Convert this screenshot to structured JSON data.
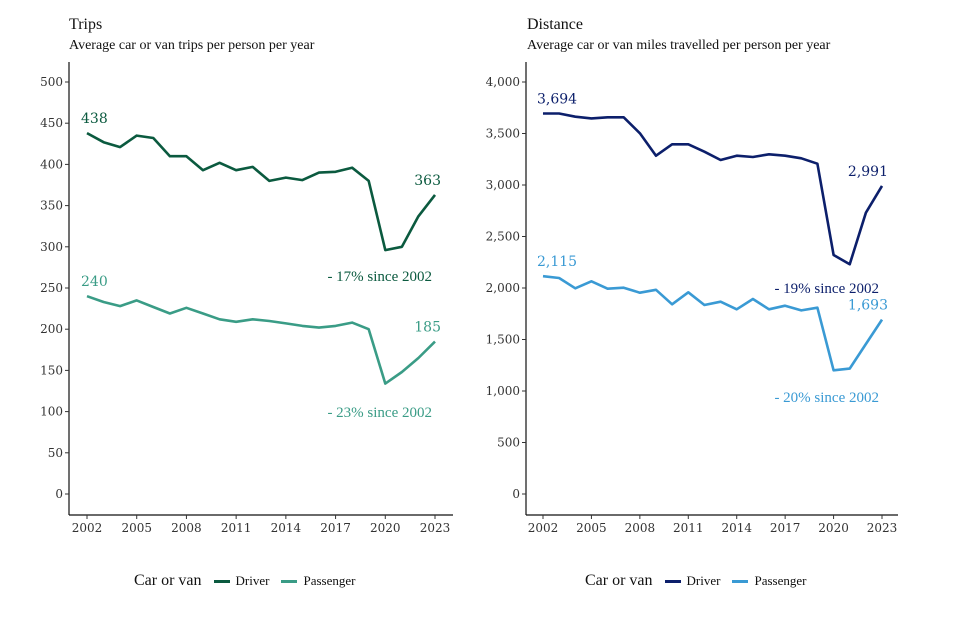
{
  "chart_data": [
    {
      "id": "trips",
      "type": "line",
      "title": "Trips",
      "subtitle": "Average car or van trips per person per year",
      "xlabel": "",
      "ylabel": "",
      "x": [
        2002,
        2003,
        2004,
        2005,
        2006,
        2007,
        2008,
        2009,
        2010,
        2011,
        2012,
        2013,
        2014,
        2015,
        2016,
        2017,
        2018,
        2019,
        2020,
        2021,
        2022,
        2023
      ],
      "xticks": [
        2002,
        2005,
        2008,
        2011,
        2014,
        2017,
        2020,
        2023
      ],
      "xtick_labels": [
        "2002",
        "2005",
        "2008",
        "2011",
        "2014",
        "2017",
        "2020",
        "2023"
      ],
      "yticks": [
        0,
        50,
        100,
        150,
        200,
        250,
        300,
        350,
        400,
        450,
        500
      ],
      "ytick_labels": [
        "0",
        "50",
        "100",
        "150",
        "200",
        "250",
        "300",
        "350",
        "400",
        "450",
        "500"
      ],
      "ylim": [
        -25,
        525
      ],
      "xlim": [
        2001.1,
        2024.1
      ],
      "grid": false,
      "series": [
        {
          "name": "Driver",
          "color": "#0b5a3f",
          "values": [
            438,
            427,
            421,
            435,
            432,
            410,
            410,
            393,
            402,
            393,
            397,
            380,
            384,
            381,
            390,
            391,
            396,
            380,
            296,
            300,
            337,
            363
          ],
          "start_label": "438",
          "end_label": "363",
          "note": "- 17% since 2002"
        },
        {
          "name": "Passenger",
          "color": "#3a9c86",
          "values": [
            240,
            233,
            228,
            235,
            227,
            219,
            226,
            219,
            212,
            209,
            212,
            210,
            207,
            204,
            202,
            204,
            208,
            200,
            134,
            148,
            165,
            185
          ],
          "start_label": "240",
          "end_label": "185",
          "note": "- 23% since 2002"
        }
      ],
      "legend": {
        "title": "Car or van",
        "position": "bottom"
      }
    },
    {
      "id": "distance",
      "type": "line",
      "title": "Distance",
      "subtitle": "Average car or van miles travelled per person per year",
      "xlabel": "",
      "ylabel": "",
      "x": [
        2002,
        2003,
        2004,
        2005,
        2006,
        2007,
        2008,
        2009,
        2010,
        2011,
        2012,
        2013,
        2014,
        2015,
        2016,
        2017,
        2018,
        2019,
        2020,
        2021,
        2022,
        2023
      ],
      "xticks": [
        2002,
        2005,
        2008,
        2011,
        2014,
        2017,
        2020,
        2023
      ],
      "xtick_labels": [
        "2002",
        "2005",
        "2008",
        "2011",
        "2014",
        "2017",
        "2020",
        "2023"
      ],
      "yticks": [
        0,
        500,
        1000,
        1500,
        2000,
        2500,
        3000,
        3500,
        4000
      ],
      "ytick_labels": [
        "0",
        "500",
        "1,000",
        "1,500",
        "2,000",
        "2,500",
        "3,000",
        "3,500",
        "4,000"
      ],
      "ylim": [
        -200,
        4200
      ],
      "xlim": [
        2001.1,
        2024.1
      ],
      "grid": false,
      "series": [
        {
          "name": "Driver",
          "color": "#0c1f6b",
          "values": [
            3694,
            3694,
            3663,
            3647,
            3657,
            3657,
            3502,
            3284,
            3395,
            3395,
            3323,
            3243,
            3284,
            3272,
            3298,
            3284,
            3259,
            3207,
            2320,
            2230,
            2731,
            2991
          ],
          "start_label": "3,694",
          "end_label": "2,991",
          "note": "- 19% since 2002"
        },
        {
          "name": "Passenger",
          "color": "#3a9ad4",
          "values": [
            2115,
            2097,
            1997,
            2065,
            1993,
            2003,
            1954,
            1983,
            1842,
            1958,
            1835,
            1867,
            1793,
            1893,
            1793,
            1828,
            1783,
            1809,
            1201,
            1217,
            1456,
            1693
          ],
          "start_label": "2,115",
          "end_label": "1,693",
          "note": "- 20% since 2002"
        }
      ],
      "legend": {
        "title": "Car or van",
        "position": "bottom"
      }
    }
  ]
}
